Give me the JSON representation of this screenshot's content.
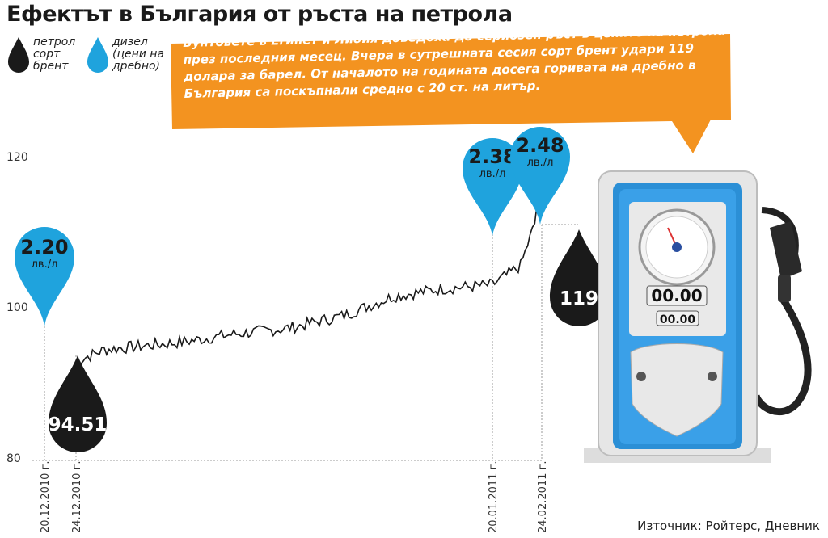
{
  "title": "Ефектът в България от ръста на петрола",
  "legend": {
    "brent_label_lines": [
      "петрол",
      "сорт",
      "брент"
    ],
    "diesel_label_lines": [
      "дизел",
      "(цени на",
      "дребно)"
    ]
  },
  "callout": {
    "text": "Бунтовете в Египет и Либия доведоха до сериозен ръст в цените на петрола през последния месец. Вчера в сутрешната сесия сорт брент удари 119 долара за барел. От началото на годината досега горивата на дребно в България са поскъпнали средно с 20 ст. на литър."
  },
  "colors": {
    "orange": "#f39320",
    "blue": "#1fa3dd",
    "black": "#1a1a1a",
    "pump_blue": "#2b8fd6"
  },
  "pump": {
    "display_main": "00.00",
    "display_small": "00.00"
  },
  "source": "Източник: Ройтерс, Дневник",
  "chart_data": {
    "type": "line",
    "ylim": [
      80,
      120
    ],
    "yticks": [
      "80",
      "100",
      "120"
    ],
    "grid": false,
    "date_labels": [
      "20.12.2010 г.",
      "24.12.2010 г.",
      "20.01.2011 г.",
      "24.02.2011 г."
    ],
    "series": [
      {
        "name": "петрол сорт брент",
        "points": [
          [
            "20.12.2010",
            93.0
          ],
          [
            "24.12.2010",
            94.51
          ],
          [
            "04.01.2011",
            95.5
          ],
          [
            "11.01.2011",
            96.5
          ],
          [
            "18.01.2011",
            97.2
          ],
          [
            "20.01.2011",
            97.5
          ],
          [
            "27.01.2011",
            99.0
          ],
          [
            "03.02.2011",
            101.5
          ],
          [
            "10.02.2011",
            102.5
          ],
          [
            "17.02.2011",
            103.0
          ],
          [
            "21.02.2011",
            105.5
          ],
          [
            "23.02.2011",
            111.0
          ],
          [
            "24.02.2011",
            119.0
          ]
        ],
        "labeled": [
          {
            "x": "24.12.2010",
            "label": "94.51"
          },
          {
            "x": "24.02.2011",
            "label": "119"
          }
        ]
      },
      {
        "name": "дизел (цени на дребно)",
        "points": [
          {
            "x": "20.12.2010",
            "value": 2.2,
            "label": "2.20",
            "unit": "лв./л"
          },
          {
            "x": "20.01.2011",
            "value": 2.38,
            "label": "2.38",
            "unit": "лв./л"
          },
          {
            "x": "24.02.2011",
            "value": 2.48,
            "label": "2.48",
            "unit": "лв./л"
          }
        ]
      }
    ]
  }
}
